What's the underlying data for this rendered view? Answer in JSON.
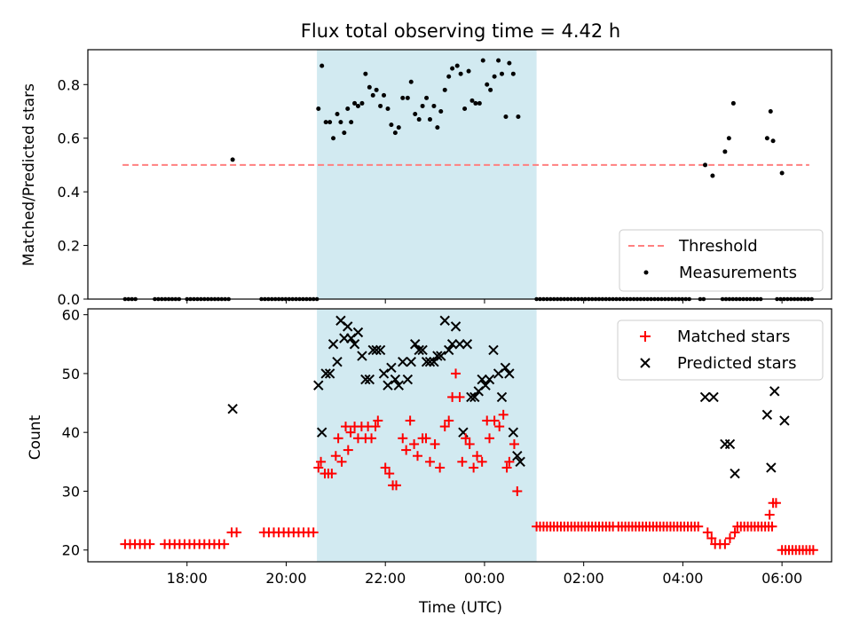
{
  "title": "Flux total observing time = 4.42 h",
  "colors": {
    "shade": "#add8e6",
    "threshold": "#ff8080",
    "matched": "#ff0000",
    "predicted": "#000000",
    "measurement": "#000000"
  },
  "x_axis": {
    "label": "Time (UTC)",
    "range_hours": [
      16.0,
      31.0
    ],
    "ticks": [
      {
        "h": 18,
        "label": "18:00"
      },
      {
        "h": 20,
        "label": "20:00"
      },
      {
        "h": 22,
        "label": "22:00"
      },
      {
        "h": 24,
        "label": "00:00"
      },
      {
        "h": 26,
        "label": "02:00"
      },
      {
        "h": 28,
        "label": "04:00"
      },
      {
        "h": 30,
        "label": "06:00"
      }
    ]
  },
  "shaded_interval_hours": [
    20.62,
    25.05
  ],
  "chart_data": [
    {
      "type": "scatter",
      "name": "ratio",
      "ylabel": "Matched/Predicted stars",
      "ylim": [
        0,
        0.93
      ],
      "yticks": [
        {
          "v": 0.0,
          "label": "0.0"
        },
        {
          "v": 0.2,
          "label": "0.2"
        },
        {
          "v": 0.4,
          "label": "0.4"
        },
        {
          "v": 0.6,
          "label": "0.6"
        },
        {
          "v": 0.8,
          "label": "0.8"
        }
      ],
      "threshold": {
        "label": "Threshold",
        "y": 0.5,
        "x": [
          16.7,
          30.55
        ]
      },
      "measurements_label": "Measurements",
      "legend_position": "lower-right",
      "zero_run_hours": [
        [
          16.75,
          17.0
        ],
        [
          17.35,
          17.85
        ],
        [
          18.0,
          18.9
        ],
        [
          19.5,
          20.62
        ],
        [
          25.05,
          28.15
        ],
        [
          28.35,
          28.48
        ],
        [
          28.8,
          29.6
        ],
        [
          29.9,
          30.65
        ]
      ],
      "measurements": [
        [
          18.92,
          0.52
        ],
        [
          20.65,
          0.71
        ],
        [
          20.72,
          0.87
        ],
        [
          20.8,
          0.66
        ],
        [
          20.88,
          0.66
        ],
        [
          20.95,
          0.6
        ],
        [
          21.03,
          0.69
        ],
        [
          21.1,
          0.66
        ],
        [
          21.17,
          0.62
        ],
        [
          21.24,
          0.71
        ],
        [
          21.31,
          0.66
        ],
        [
          21.38,
          0.73
        ],
        [
          21.45,
          0.72
        ],
        [
          21.53,
          0.73
        ],
        [
          21.6,
          0.84
        ],
        [
          21.68,
          0.79
        ],
        [
          21.75,
          0.76
        ],
        [
          21.82,
          0.78
        ],
        [
          21.9,
          0.72
        ],
        [
          21.97,
          0.76
        ],
        [
          22.05,
          0.71
        ],
        [
          22.12,
          0.65
        ],
        [
          22.2,
          0.62
        ],
        [
          22.27,
          0.64
        ],
        [
          22.35,
          0.75
        ],
        [
          22.45,
          0.75
        ],
        [
          22.52,
          0.81
        ],
        [
          22.6,
          0.69
        ],
        [
          22.68,
          0.67
        ],
        [
          22.75,
          0.72
        ],
        [
          22.83,
          0.75
        ],
        [
          22.9,
          0.67
        ],
        [
          22.98,
          0.72
        ],
        [
          23.05,
          0.64
        ],
        [
          23.12,
          0.7
        ],
        [
          23.2,
          0.78
        ],
        [
          23.28,
          0.83
        ],
        [
          23.35,
          0.86
        ],
        [
          23.45,
          0.87
        ],
        [
          23.52,
          0.84
        ],
        [
          23.6,
          0.71
        ],
        [
          23.68,
          0.85
        ],
        [
          23.75,
          0.74
        ],
        [
          23.82,
          0.73
        ],
        [
          23.9,
          0.73
        ],
        [
          23.97,
          0.89
        ],
        [
          24.05,
          0.8
        ],
        [
          24.12,
          0.78
        ],
        [
          24.2,
          0.83
        ],
        [
          24.28,
          0.89
        ],
        [
          24.35,
          0.84
        ],
        [
          24.43,
          0.68
        ],
        [
          24.5,
          0.88
        ],
        [
          24.58,
          0.84
        ],
        [
          24.68,
          0.68
        ],
        [
          28.45,
          0.5
        ],
        [
          28.6,
          0.46
        ],
        [
          28.85,
          0.55
        ],
        [
          28.93,
          0.6
        ],
        [
          29.02,
          0.73
        ],
        [
          29.7,
          0.6
        ],
        [
          29.77,
          0.7
        ],
        [
          29.82,
          0.59
        ],
        [
          30.0,
          0.47
        ]
      ]
    },
    {
      "type": "scatter",
      "name": "counts",
      "ylabel": "Count",
      "ylim": [
        18,
        61
      ],
      "yticks": [
        {
          "v": 20,
          "label": "20"
        },
        {
          "v": 30,
          "label": "30"
        },
        {
          "v": 40,
          "label": "40"
        },
        {
          "v": 50,
          "label": "50"
        },
        {
          "v": 60,
          "label": "60"
        }
      ],
      "legend_position": "upper-right",
      "series": [
        {
          "name": "Matched stars",
          "marker": "plus",
          "runs": [
            {
              "y": 21,
              "x": [
                16.75,
                17.3
              ],
              "step": 0.1
            },
            {
              "y": 21,
              "x": [
                17.55,
                17.95
              ],
              "step": 0.1
            },
            {
              "y": 21,
              "x": [
                18.05,
                18.75
              ],
              "step": 0.1
            },
            {
              "y": 23,
              "x": [
                18.9,
                19.05
              ],
              "step": 0.1
            },
            {
              "y": 23,
              "x": [
                19.55,
                20.55
              ],
              "step": 0.1
            },
            {
              "y": 24,
              "x": [
                25.05,
                26.6
              ],
              "step": 0.07
            },
            {
              "y": 24,
              "x": [
                26.7,
                28.35
              ],
              "step": 0.07
            },
            {
              "y": 24,
              "x": [
                29.1,
                29.85
              ],
              "step": 0.07
            },
            {
              "y": 20,
              "x": [
                30.0,
                30.65
              ],
              "step": 0.07
            }
          ],
          "points": [
            [
              20.65,
              34
            ],
            [
              20.7,
              35
            ],
            [
              20.78,
              33
            ],
            [
              20.85,
              33
            ],
            [
              20.92,
              33
            ],
            [
              21.0,
              36
            ],
            [
              21.05,
              39
            ],
            [
              21.12,
              35
            ],
            [
              21.2,
              41
            ],
            [
              21.25,
              37
            ],
            [
              21.3,
              40
            ],
            [
              21.38,
              41
            ],
            [
              21.45,
              39
            ],
            [
              21.52,
              41
            ],
            [
              21.6,
              39
            ],
            [
              21.65,
              41
            ],
            [
              21.72,
              39
            ],
            [
              21.8,
              41
            ],
            [
              21.85,
              42
            ],
            [
              22.0,
              34
            ],
            [
              22.08,
              33
            ],
            [
              22.15,
              31
            ],
            [
              22.22,
              31
            ],
            [
              22.35,
              39
            ],
            [
              22.42,
              37
            ],
            [
              22.5,
              42
            ],
            [
              22.58,
              38
            ],
            [
              22.65,
              36
            ],
            [
              22.75,
              39
            ],
            [
              22.82,
              39
            ],
            [
              22.9,
              35
            ],
            [
              23.0,
              38
            ],
            [
              23.1,
              34
            ],
            [
              23.2,
              41
            ],
            [
              23.28,
              42
            ],
            [
              23.35,
              46
            ],
            [
              23.42,
              50
            ],
            [
              23.5,
              46
            ],
            [
              23.55,
              35
            ],
            [
              23.62,
              39
            ],
            [
              23.7,
              38
            ],
            [
              23.78,
              34
            ],
            [
              23.85,
              36
            ],
            [
              23.95,
              35
            ],
            [
              24.05,
              42
            ],
            [
              24.1,
              39
            ],
            [
              24.2,
              42
            ],
            [
              24.3,
              41
            ],
            [
              24.38,
              43
            ],
            [
              24.45,
              34
            ],
            [
              24.5,
              35
            ],
            [
              24.6,
              38
            ],
            [
              24.66,
              30
            ],
            [
              28.5,
              23
            ],
            [
              28.58,
              22
            ],
            [
              28.65,
              21
            ],
            [
              28.75,
              21
            ],
            [
              28.85,
              21
            ],
            [
              28.95,
              22
            ],
            [
              29.05,
              23
            ],
            [
              29.75,
              26
            ],
            [
              29.82,
              28
            ],
            [
              29.88,
              28
            ]
          ]
        },
        {
          "name": "Predicted stars",
          "marker": "x",
          "points": [
            [
              18.92,
              44
            ],
            [
              20.65,
              48
            ],
            [
              20.72,
              40
            ],
            [
              20.8,
              50
            ],
            [
              20.88,
              50
            ],
            [
              20.95,
              55
            ],
            [
              21.03,
              52
            ],
            [
              21.1,
              59
            ],
            [
              21.17,
              56
            ],
            [
              21.24,
              58
            ],
            [
              21.31,
              56
            ],
            [
              21.38,
              55
            ],
            [
              21.45,
              57
            ],
            [
              21.53,
              53
            ],
            [
              21.6,
              49
            ],
            [
              21.68,
              49
            ],
            [
              21.75,
              54
            ],
            [
              21.82,
              54
            ],
            [
              21.9,
              54
            ],
            [
              21.97,
              50
            ],
            [
              22.05,
              48
            ],
            [
              22.12,
              51
            ],
            [
              22.2,
              49
            ],
            [
              22.27,
              48
            ],
            [
              22.35,
              52
            ],
            [
              22.45,
              49
            ],
            [
              22.52,
              52
            ],
            [
              22.6,
              55
            ],
            [
              22.68,
              54
            ],
            [
              22.75,
              54
            ],
            [
              22.83,
              52
            ],
            [
              22.9,
              52
            ],
            [
              22.98,
              52
            ],
            [
              23.05,
              53
            ],
            [
              23.12,
              53
            ],
            [
              23.2,
              59
            ],
            [
              23.28,
              54
            ],
            [
              23.35,
              55
            ],
            [
              23.42,
              58
            ],
            [
              23.5,
              55
            ],
            [
              23.57,
              40
            ],
            [
              23.65,
              55
            ],
            [
              23.73,
              46
            ],
            [
              23.8,
              46
            ],
            [
              23.88,
              47
            ],
            [
              23.95,
              49
            ],
            [
              24.02,
              48
            ],
            [
              24.1,
              49
            ],
            [
              24.18,
              54
            ],
            [
              24.28,
              50
            ],
            [
              24.35,
              46
            ],
            [
              24.42,
              51
            ],
            [
              24.5,
              50
            ],
            [
              24.58,
              40
            ],
            [
              24.66,
              36
            ],
            [
              24.72,
              35
            ],
            [
              28.45,
              46
            ],
            [
              28.62,
              46
            ],
            [
              28.85,
              38
            ],
            [
              28.95,
              38
            ],
            [
              29.05,
              33
            ],
            [
              29.7,
              43
            ],
            [
              29.78,
              34
            ],
            [
              29.85,
              47
            ],
            [
              30.05,
              42
            ]
          ]
        }
      ]
    }
  ]
}
